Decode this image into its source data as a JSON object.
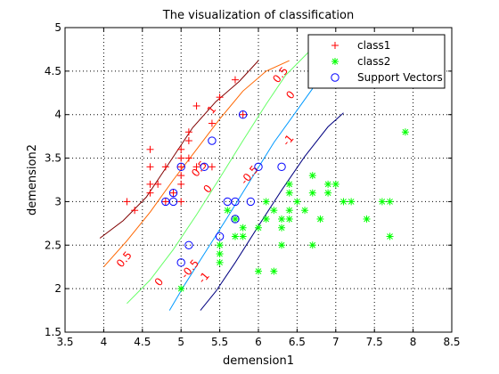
{
  "chart_data": {
    "type": "scatter",
    "title": "The visualization of classification",
    "xlabel": "demension1",
    "ylabel": "demension2",
    "xlim": [
      3.5,
      8.5
    ],
    "ylim": [
      1.5,
      5
    ],
    "xticks": [
      "3.5",
      "4",
      "4.5",
      "5",
      "5.5",
      "6",
      "6.5",
      "7",
      "7.5",
      "8",
      "8.5"
    ],
    "yticks": [
      "1.5",
      "2",
      "2.5",
      "3",
      "3.5",
      "4",
      "4.5",
      "5"
    ],
    "grid": "dotted",
    "legend_position": "top-right",
    "colors": {
      "class1": "#ff0000",
      "class2": "#00ff00",
      "support": "#0000ff",
      "line_neg1": "#000080",
      "line_neg05": "#0099ff",
      "line_0": "#66ff66",
      "line_05": "#ff6600",
      "line_1": "#800000",
      "contour_label": "#ff0000"
    },
    "series": [
      {
        "name": "class1",
        "marker": "+",
        "points": [
          [
            4.3,
            3.0
          ],
          [
            4.4,
            2.9
          ],
          [
            4.6,
            3.1
          ],
          [
            4.6,
            3.2
          ],
          [
            4.6,
            3.4
          ],
          [
            4.6,
            3.6
          ],
          [
            4.7,
            3.2
          ],
          [
            4.8,
            3.4
          ],
          [
            4.8,
            3.0
          ],
          [
            4.9,
            3.1
          ],
          [
            5.0,
            3.0
          ],
          [
            5.0,
            3.2
          ],
          [
            5.0,
            3.3
          ],
          [
            5.0,
            3.4
          ],
          [
            5.0,
            3.5
          ],
          [
            5.0,
            3.6
          ],
          [
            5.1,
            3.5
          ],
          [
            5.1,
            3.7
          ],
          [
            5.1,
            3.8
          ],
          [
            5.2,
            3.4
          ],
          [
            5.2,
            4.1
          ],
          [
            5.4,
            3.4
          ],
          [
            5.4,
            3.9
          ],
          [
            5.5,
            4.2
          ],
          [
            5.7,
            4.4
          ],
          [
            5.8,
            4.0
          ]
        ]
      },
      {
        "name": "class2",
        "marker": "*",
        "points": [
          [
            5.0,
            2.0
          ],
          [
            5.5,
            2.3
          ],
          [
            5.5,
            2.4
          ],
          [
            5.5,
            2.5
          ],
          [
            5.6,
            2.9
          ],
          [
            5.7,
            2.6
          ],
          [
            5.7,
            2.8
          ],
          [
            5.8,
            2.6
          ],
          [
            5.8,
            2.7
          ],
          [
            6.0,
            2.2
          ],
          [
            6.0,
            2.7
          ],
          [
            6.1,
            2.8
          ],
          [
            6.1,
            3.0
          ],
          [
            6.2,
            2.2
          ],
          [
            6.2,
            2.9
          ],
          [
            6.3,
            2.5
          ],
          [
            6.3,
            2.7
          ],
          [
            6.3,
            2.8
          ],
          [
            6.4,
            2.8
          ],
          [
            6.4,
            2.9
          ],
          [
            6.4,
            3.1
          ],
          [
            6.4,
            3.2
          ],
          [
            6.5,
            3.0
          ],
          [
            6.6,
            2.9
          ],
          [
            6.7,
            2.5
          ],
          [
            6.7,
            3.1
          ],
          [
            6.7,
            3.3
          ],
          [
            6.8,
            2.8
          ],
          [
            6.9,
            3.1
          ],
          [
            6.9,
            3.2
          ],
          [
            7.0,
            3.2
          ],
          [
            7.1,
            3.0
          ],
          [
            7.2,
            3.0
          ],
          [
            7.4,
            2.8
          ],
          [
            7.6,
            3.0
          ],
          [
            7.7,
            2.6
          ],
          [
            7.7,
            3.0
          ],
          [
            7.9,
            3.8
          ]
        ]
      },
      {
        "name": "Support Vectors",
        "marker": "o",
        "points": [
          [
            4.8,
            3.0
          ],
          [
            4.9,
            3.0
          ],
          [
            4.9,
            3.1
          ],
          [
            5.0,
            3.4
          ],
          [
            5.0,
            2.3
          ],
          [
            5.1,
            2.5
          ],
          [
            5.3,
            3.4
          ],
          [
            5.4,
            3.7
          ],
          [
            5.5,
            2.6
          ],
          [
            5.6,
            3.0
          ],
          [
            5.7,
            3.0
          ],
          [
            5.7,
            2.8
          ],
          [
            5.8,
            4.0
          ],
          [
            5.9,
            3.0
          ],
          [
            6.0,
            3.4
          ],
          [
            6.3,
            3.4
          ]
        ]
      }
    ],
    "contours": [
      {
        "level": -1,
        "points": [
          [
            5.25,
            1.75
          ],
          [
            5.45,
            1.97
          ],
          [
            5.7,
            2.3
          ],
          [
            6.0,
            2.72
          ],
          [
            6.3,
            3.13
          ],
          [
            6.6,
            3.52
          ],
          [
            6.9,
            3.86
          ],
          [
            7.1,
            4.02
          ]
        ]
      },
      {
        "level": -0.5,
        "points": [
          [
            4.85,
            1.75
          ],
          [
            5.05,
            2.05
          ],
          [
            5.3,
            2.4
          ],
          [
            5.6,
            2.82
          ],
          [
            5.9,
            3.25
          ],
          [
            6.2,
            3.68
          ],
          [
            6.5,
            4.05
          ],
          [
            6.7,
            4.3
          ]
        ]
      },
      {
        "level": 0,
        "points": [
          [
            4.3,
            1.83
          ],
          [
            4.6,
            2.1
          ],
          [
            4.9,
            2.45
          ],
          [
            5.2,
            2.85
          ],
          [
            5.5,
            3.27
          ],
          [
            5.8,
            3.7
          ],
          [
            6.1,
            4.12
          ],
          [
            6.35,
            4.45
          ],
          [
            6.65,
            4.72
          ]
        ]
      },
      {
        "level": 0.5,
        "points": [
          [
            4.0,
            2.25
          ],
          [
            4.3,
            2.55
          ],
          [
            4.6,
            2.88
          ],
          [
            4.9,
            3.25
          ],
          [
            5.2,
            3.6
          ],
          [
            5.5,
            3.95
          ],
          [
            5.8,
            4.27
          ],
          [
            6.1,
            4.5
          ],
          [
            6.4,
            4.62
          ]
        ]
      },
      {
        "level": 1,
        "points": [
          [
            3.95,
            2.58
          ],
          [
            4.25,
            2.78
          ],
          [
            4.55,
            3.05
          ],
          [
            4.85,
            3.45
          ],
          [
            5.15,
            3.85
          ],
          [
            5.45,
            4.15
          ],
          [
            5.75,
            4.38
          ],
          [
            6.0,
            4.62
          ]
        ]
      }
    ],
    "contour_labels": [
      {
        "text": "-1",
        "x": 5.33,
        "y": 2.1
      },
      {
        "text": "-0.5",
        "x": 5.15,
        "y": 2.2
      },
      {
        "text": "0",
        "x": 4.75,
        "y": 2.05
      },
      {
        "text": "0.5",
        "x": 4.3,
        "y": 2.31
      },
      {
        "text": "-0.5",
        "x": 5.92,
        "y": 3.28
      },
      {
        "text": "-1",
        "x": 6.42,
        "y": 3.68
      },
      {
        "text": "0",
        "x": 5.38,
        "y": 3.12
      },
      {
        "text": "0.5",
        "x": 5.27,
        "y": 3.35
      },
      {
        "text": "1",
        "x": 5.43,
        "y": 4.03
      },
      {
        "text": "0.5",
        "x": 6.32,
        "y": 4.43
      },
      {
        "text": "0",
        "x": 6.45,
        "y": 4.2
      }
    ]
  }
}
